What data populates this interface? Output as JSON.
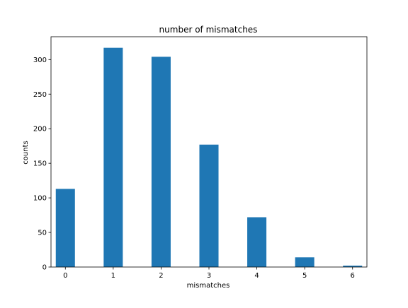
{
  "chart_data": {
    "type": "bar",
    "title": "number of mismatches",
    "xlabel": "mismatches",
    "ylabel": "counts",
    "x": [
      0,
      1,
      2,
      3,
      4,
      5,
      6
    ],
    "values": [
      113,
      317,
      304,
      177,
      72,
      14,
      2
    ],
    "xlim": [
      -0.3,
      6.3
    ],
    "ylim": [
      0,
      333
    ],
    "xticks": [
      0,
      1,
      2,
      3,
      4,
      5,
      6
    ],
    "xtick_labels": [
      "0",
      "1",
      "2",
      "3",
      "4",
      "5",
      "6"
    ],
    "yticks": [
      0,
      50,
      100,
      150,
      200,
      250,
      300
    ],
    "ytick_labels": [
      "0",
      "50",
      "100",
      "150",
      "200",
      "250",
      "300"
    ],
    "grid": false,
    "colors": {
      "bar": "#1f77b4"
    }
  }
}
